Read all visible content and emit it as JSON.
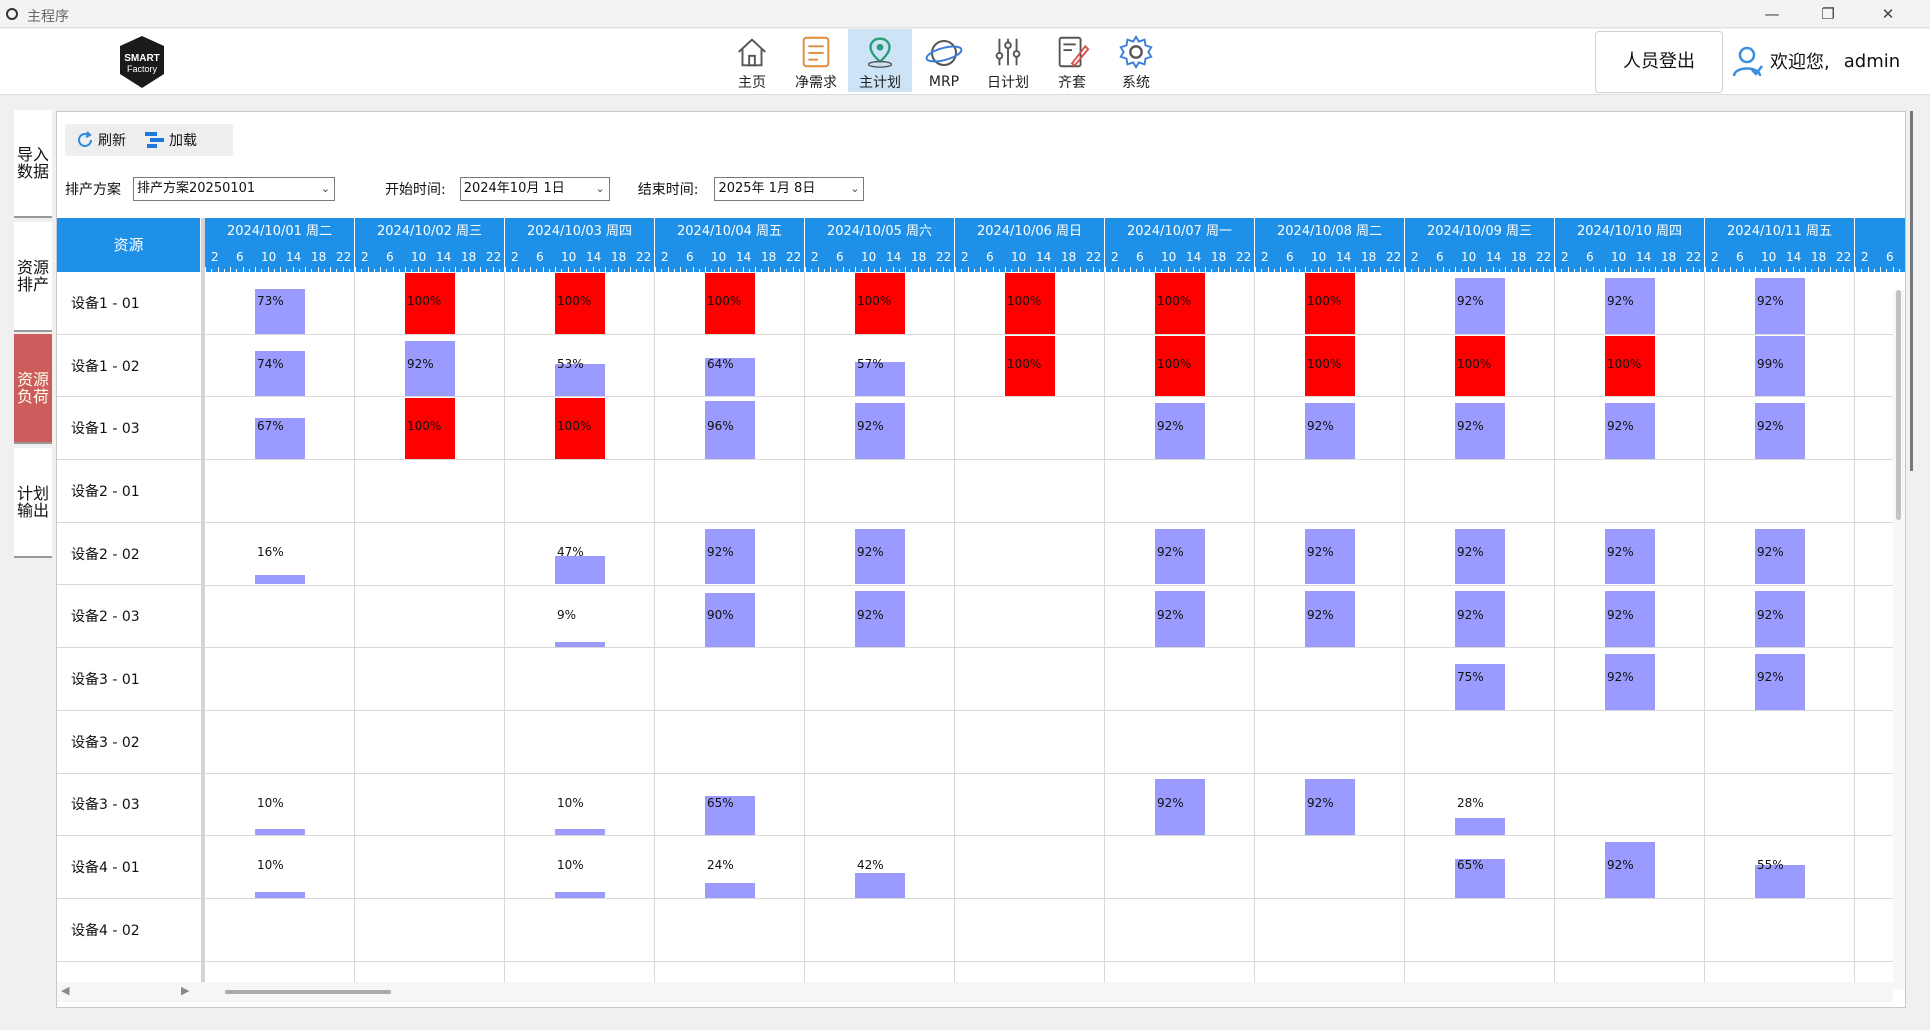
{
  "window": {
    "title": "主程序",
    "controls": [
      "—",
      "❐",
      "✕"
    ]
  },
  "logo_text": [
    "SMART",
    "Factory"
  ],
  "nav": [
    {
      "label": "主页",
      "icon": "home-icon"
    },
    {
      "label": "净需求",
      "icon": "list-icon"
    },
    {
      "label": "主计划",
      "icon": "location-pin-icon",
      "active": true
    },
    {
      "label": "MRP",
      "icon": "planet-icon"
    },
    {
      "label": "日计划",
      "icon": "sliders-icon"
    },
    {
      "label": "齐套",
      "icon": "edit-doc-icon"
    },
    {
      "label": "系统",
      "icon": "gear-icon"
    }
  ],
  "header": {
    "logout": "人员登出",
    "welcome": "欢迎您,",
    "user": "admin"
  },
  "left_tabs": [
    {
      "label": "导入\n数据"
    },
    {
      "label": "资源\n排产"
    },
    {
      "label": "资源\n负荷",
      "active": true
    },
    {
      "label": "计划\n输出"
    }
  ],
  "toolbar": {
    "refresh": "刷新",
    "load": "加载"
  },
  "filters": {
    "scheme_label": "排产方案",
    "scheme_value": "排产方案20250101",
    "start_label": "开始时间:",
    "start_value": "2024年10月 1日",
    "end_label": "结束时间:",
    "end_value": "2025年 1月 8日"
  },
  "grid": {
    "corner_label": "资源",
    "hours": [
      "2",
      "6",
      "10",
      "14",
      "18",
      "22"
    ],
    "dates": [
      "2024/10/01  周二",
      "2024/10/02  周三",
      "2024/10/03  周四",
      "2024/10/04  周五",
      "2024/10/05  周六",
      "2024/10/06  周日",
      "2024/10/07  周一",
      "2024/10/08  周二",
      "2024/10/09  周三",
      "2024/10/10  周四",
      "2024/10/11  周五",
      "2024/"
    ],
    "resources": [
      "设备1 - 01",
      "设备1 - 02",
      "设备1 - 03",
      "设备2 - 01",
      "设备2 - 02",
      "设备2 - 03",
      "设备3 - 01",
      "设备3 - 02",
      "设备3 - 03",
      "设备4 - 01",
      "设备4 - 02"
    ],
    "loads": [
      [
        73,
        100,
        100,
        100,
        100,
        100,
        100,
        100,
        92,
        92,
        92
      ],
      [
        74,
        92,
        53,
        64,
        57,
        100,
        100,
        100,
        100,
        100,
        99
      ],
      [
        67,
        100,
        100,
        96,
        92,
        null,
        92,
        92,
        92,
        92,
        92
      ],
      [
        null,
        null,
        null,
        null,
        null,
        null,
        null,
        null,
        null,
        null,
        null
      ],
      [
        16,
        null,
        47,
        92,
        92,
        null,
        92,
        92,
        92,
        92,
        92
      ],
      [
        null,
        null,
        9,
        90,
        92,
        null,
        92,
        92,
        92,
        92,
        92
      ],
      [
        null,
        null,
        null,
        null,
        null,
        null,
        null,
        null,
        75,
        92,
        92
      ],
      [
        null,
        null,
        null,
        null,
        null,
        null,
        null,
        null,
        null,
        null,
        null
      ],
      [
        10,
        null,
        10,
        65,
        null,
        null,
        92,
        92,
        28,
        null,
        null
      ],
      [
        10,
        null,
        10,
        24,
        42,
        null,
        null,
        null,
        65,
        92,
        55
      ],
      [
        null,
        null,
        null,
        null,
        null,
        null,
        null,
        null,
        null,
        null,
        null
      ]
    ],
    "colors": {
      "normal": "#9b9bff",
      "overload": "#ff0000",
      "header": "#1e90e8"
    }
  }
}
